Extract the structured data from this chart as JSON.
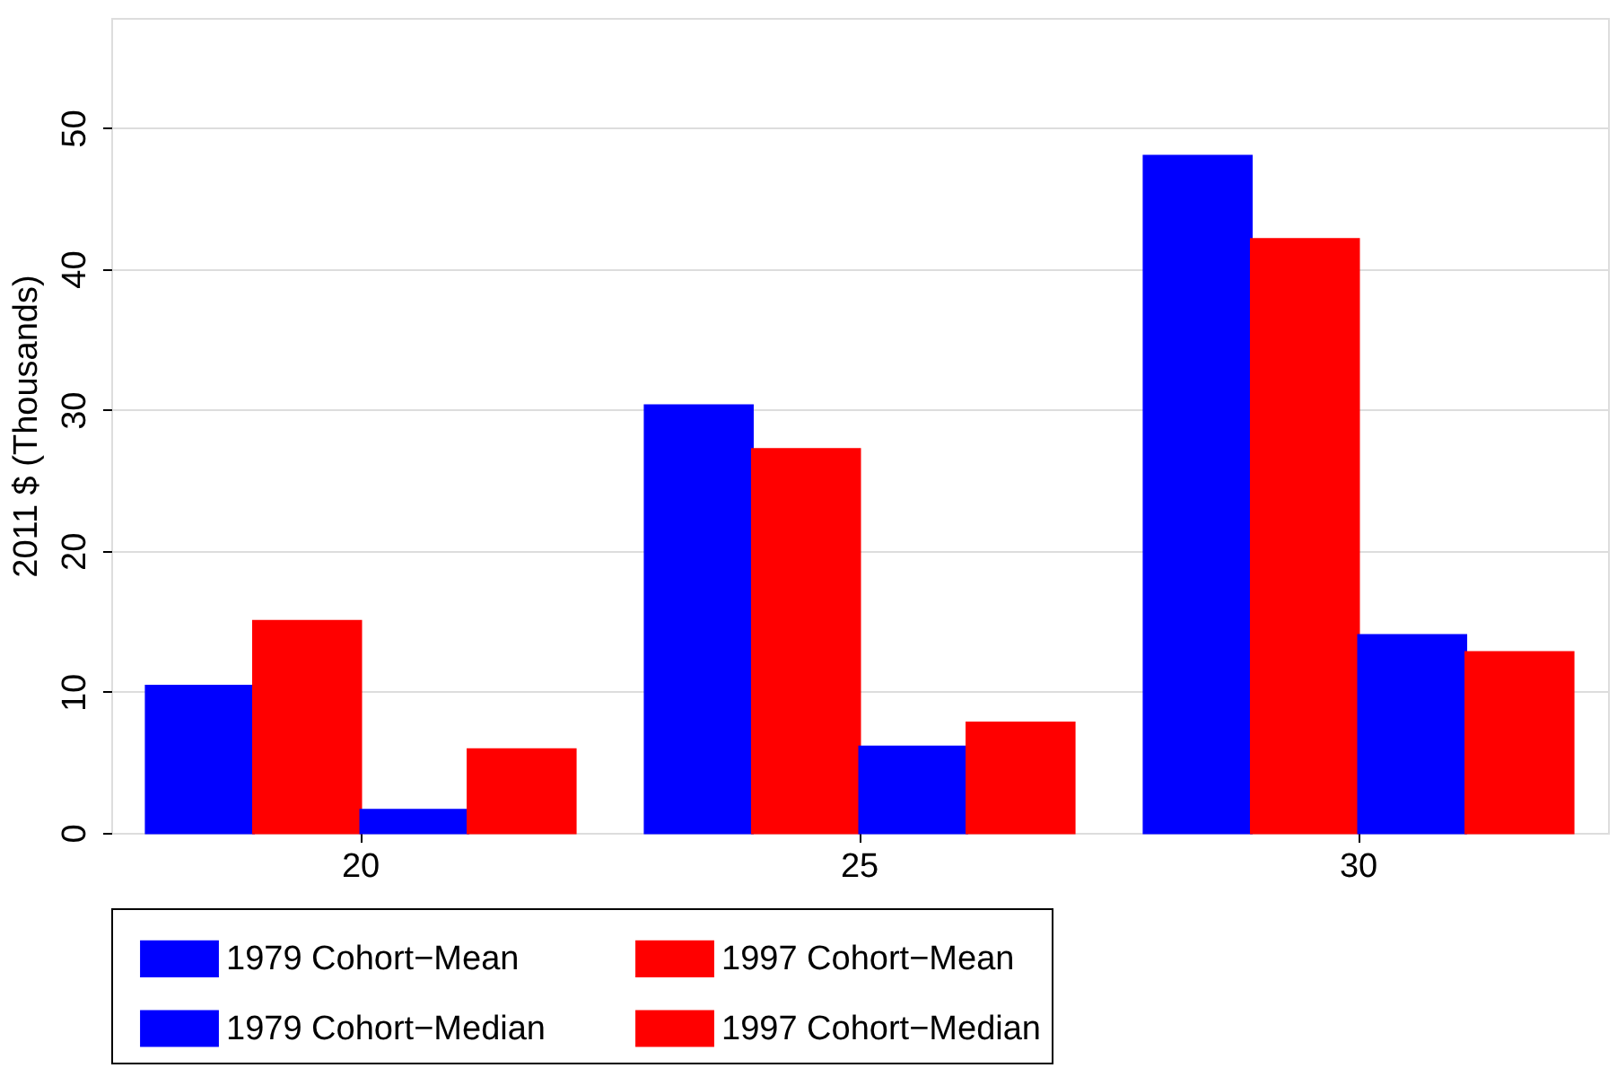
{
  "chart_data": {
    "type": "bar",
    "ylabel": "2011 $ (Thousands)",
    "categories": [
      "20",
      "25",
      "30"
    ],
    "series": [
      {
        "name": "1979 Cohort−Mean",
        "color": "#0000ff",
        "values": [
          10.4,
          30.3,
          48.0
        ]
      },
      {
        "name": "1997 Cohort−Mean",
        "color": "#ff0000",
        "values": [
          15.0,
          27.2,
          42.1
        ]
      },
      {
        "name": "1979 Cohort−Median",
        "color": "#0000ff",
        "values": [
          1.6,
          6.1,
          14.0
        ]
      },
      {
        "name": "1997 Cohort−Median",
        "color": "#ff0000",
        "values": [
          5.9,
          7.8,
          12.8
        ]
      }
    ],
    "ylim": [
      0,
      57.8
    ],
    "yticks": [
      0,
      10,
      20,
      30,
      40,
      50
    ],
    "grid": "y",
    "legend": "bottom"
  }
}
